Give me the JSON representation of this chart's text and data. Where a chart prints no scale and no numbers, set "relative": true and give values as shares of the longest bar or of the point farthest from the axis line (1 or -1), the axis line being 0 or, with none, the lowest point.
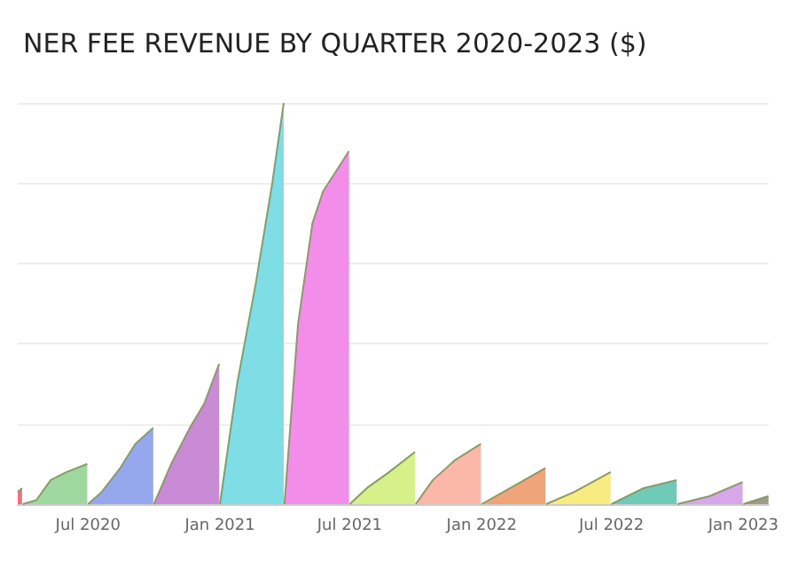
{
  "chart_data": {
    "type": "area",
    "title": "NER FEE REVENUE BY QUARTER 2020-2023 ($)",
    "relative": true,
    "grid": "y",
    "xlim": [
      "2020-03-25",
      "2023-02-05"
    ],
    "xticks": [
      {
        "value": "2020-07-01",
        "label": "Jul 2020"
      },
      {
        "value": "2021-01-01",
        "label": "Jan 2021"
      },
      {
        "value": "2021-07-01",
        "label": "Jul 2021"
      },
      {
        "value": "2022-01-01",
        "label": "Jan 2022"
      },
      {
        "value": "2022-07-01",
        "label": "Jul 2022"
      },
      {
        "value": "2023-01-01",
        "label": "Jan 2023"
      }
    ],
    "series": [
      {
        "color": "#f07080",
        "x": [
          "2020-03-25",
          "2020-03-31"
        ],
        "values": [
          0.03,
          0.04
        ]
      },
      {
        "color": "#9fd89f",
        "x": [
          "2020-04-01",
          "2020-04-20",
          "2020-05-10",
          "2020-06-01",
          "2020-06-30"
        ],
        "values": [
          0,
          0.01,
          0.06,
          0.08,
          0.1
        ]
      },
      {
        "color": "#95a8ee",
        "x": [
          "2020-07-01",
          "2020-07-20",
          "2020-08-15",
          "2020-09-05",
          "2020-09-30"
        ],
        "values": [
          0,
          0.03,
          0.09,
          0.15,
          0.19
        ]
      },
      {
        "color": "#c98bd6",
        "x": [
          "2020-10-01",
          "2020-10-25",
          "2020-11-20",
          "2020-12-10",
          "2020-12-31"
        ],
        "values": [
          0,
          0.1,
          0.19,
          0.25,
          0.35
        ]
      },
      {
        "color": "#7fdde6",
        "x": [
          "2021-01-01",
          "2021-01-25",
          "2021-02-20",
          "2021-03-15",
          "2021-03-31"
        ],
        "values": [
          0,
          0.3,
          0.55,
          0.8,
          1
        ]
      },
      {
        "color": "#f28ee9",
        "x": [
          "2021-04-01",
          "2021-04-20",
          "2021-05-10",
          "2021-05-25",
          "2021-06-30"
        ],
        "values": [
          0,
          0.45,
          0.7,
          0.78,
          0.88
        ]
      },
      {
        "color": "#d6f08a",
        "x": [
          "2021-07-01",
          "2021-07-25",
          "2021-08-25",
          "2021-09-30"
        ],
        "values": [
          0,
          0.04,
          0.08,
          0.13
        ]
      },
      {
        "color": "#fbb8a8",
        "x": [
          "2021-10-01",
          "2021-10-25",
          "2021-11-25",
          "2021-12-31"
        ],
        "values": [
          0,
          0.06,
          0.11,
          0.15
        ]
      },
      {
        "color": "#f0a47a",
        "x": [
          "2022-01-01",
          "2022-02-10",
          "2022-03-31"
        ],
        "values": [
          0,
          0.04,
          0.09
        ]
      },
      {
        "color": "#f8ec80",
        "x": [
          "2022-04-01",
          "2022-05-10",
          "2022-06-30"
        ],
        "values": [
          0,
          0.03,
          0.08
        ]
      },
      {
        "color": "#6fcab8",
        "x": [
          "2022-07-01",
          "2022-08-15",
          "2022-09-30"
        ],
        "values": [
          0,
          0.04,
          0.06
        ]
      },
      {
        "color": "#d8a6ea",
        "x": [
          "2022-10-01",
          "2022-11-15",
          "2022-12-31"
        ],
        "values": [
          0,
          0.02,
          0.055
        ]
      },
      {
        "color": "#a09a88",
        "x": [
          "2023-01-01",
          "2023-02-05"
        ],
        "values": [
          0,
          0.02
        ]
      }
    ]
  }
}
